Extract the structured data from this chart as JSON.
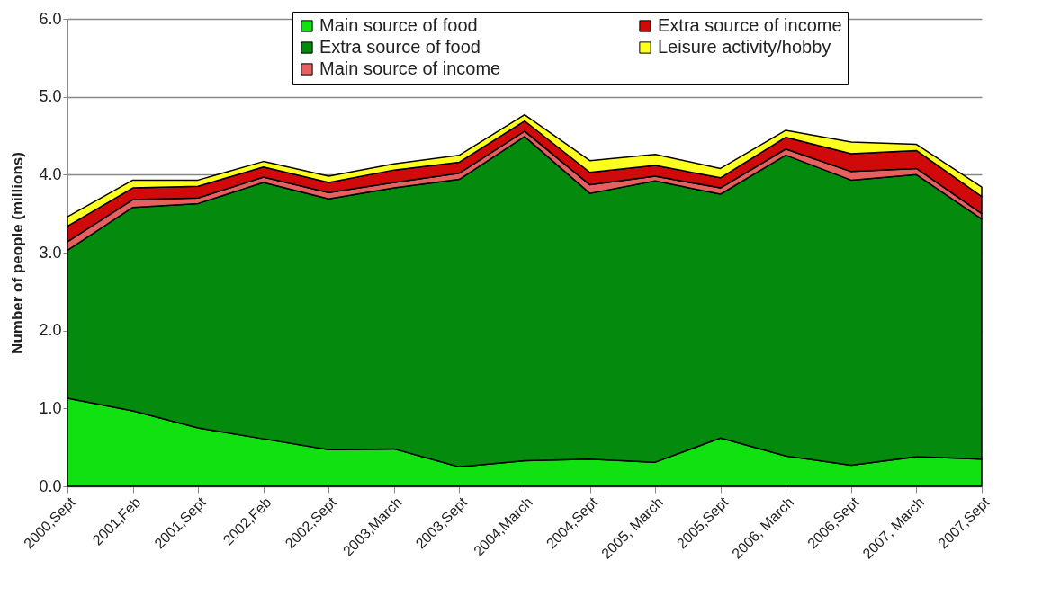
{
  "chart_data": {
    "type": "area",
    "stacked": true,
    "ylabel": "Number of people (millions)",
    "categories": [
      "2000,Sept",
      "2001,Feb",
      "2001,Sept",
      "2002,Feb",
      "2002,Sept",
      "2003,March",
      "2003,Sept",
      "2004,March",
      "2004,Sept",
      "2005, March",
      "2005,Sept",
      "2006, March",
      "2006,Sept",
      "2007, March",
      "2007,Sept"
    ],
    "series": [
      {
        "name": "Main source of food",
        "color": "#11e011",
        "values": [
          1.13,
          0.97,
          0.75,
          0.61,
          0.47,
          0.48,
          0.25,
          0.33,
          0.35,
          0.31,
          0.62,
          0.39,
          0.27,
          0.38,
          0.35
        ]
      },
      {
        "name": "Extra source of food",
        "color": "#048a0c",
        "values": [
          1.9,
          2.61,
          2.88,
          3.29,
          3.22,
          3.35,
          3.69,
          4.16,
          3.41,
          3.61,
          3.13,
          3.86,
          3.66,
          3.62,
          3.08
        ]
      },
      {
        "name": "Main source of income",
        "color": "#e66060",
        "values": [
          0.11,
          0.1,
          0.07,
          0.07,
          0.08,
          0.07,
          0.08,
          0.07,
          0.11,
          0.06,
          0.08,
          0.08,
          0.11,
          0.08,
          0.07
        ]
      },
      {
        "name": "Extra source of income",
        "color": "#d00a0a",
        "values": [
          0.2,
          0.15,
          0.15,
          0.13,
          0.13,
          0.16,
          0.14,
          0.13,
          0.16,
          0.14,
          0.13,
          0.15,
          0.23,
          0.23,
          0.22
        ]
      },
      {
        "name": "Leisure activity/hobby",
        "color": "#ffff20",
        "values": [
          0.12,
          0.1,
          0.08,
          0.07,
          0.08,
          0.08,
          0.09,
          0.08,
          0.15,
          0.14,
          0.12,
          0.09,
          0.15,
          0.08,
          0.12
        ]
      }
    ],
    "ylim": [
      0,
      6
    ],
    "yticks": [
      {
        "value": 0,
        "label": "0.0"
      },
      {
        "value": 1,
        "label": "1.0"
      },
      {
        "value": 2,
        "label": "2.0"
      },
      {
        "value": 3,
        "label": "3.0"
      },
      {
        "value": 4,
        "label": "4.0"
      },
      {
        "value": 5,
        "label": "5.0"
      },
      {
        "value": 6,
        "label": "6.0"
      }
    ],
    "grid": "y",
    "legend": "top"
  }
}
